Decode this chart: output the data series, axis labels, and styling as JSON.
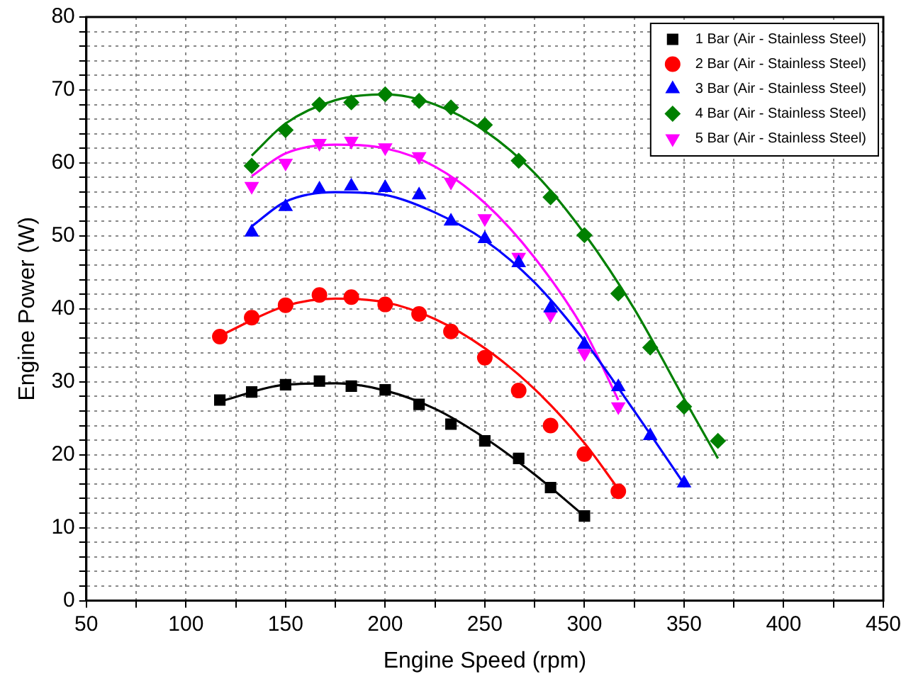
{
  "chart_data": {
    "type": "scatter",
    "xlabel": "Engine Speed (rpm)",
    "ylabel": "Engine Power (W)",
    "xlim": [
      50,
      450
    ],
    "xticks": [
      50,
      {
        "value": 75,
        "label": null
      },
      100,
      {
        "value": 125,
        "label": null
      },
      150,
      {
        "value": 175,
        "label": null
      },
      200,
      {
        "value": 225,
        "label": null
      },
      250,
      {
        "value": 275,
        "label": null
      },
      300,
      {
        "value": 325,
        "label": null
      },
      350,
      {
        "value": 375,
        "label": null
      },
      400,
      {
        "value": 425,
        "label": null
      },
      450
    ],
    "ylim": [
      0,
      80
    ],
    "yticks": [
      0,
      {
        "value": 2,
        "label": null
      },
      {
        "value": 4,
        "label": null
      },
      {
        "value": 6,
        "label": null
      },
      {
        "value": 8,
        "label": null
      },
      10,
      {
        "value": 12,
        "label": null
      },
      {
        "value": 14,
        "label": null
      },
      {
        "value": 16,
        "label": null
      },
      {
        "value": 18,
        "label": null
      },
      20,
      {
        "value": 22,
        "label": null
      },
      {
        "value": 24,
        "label": null
      },
      {
        "value": 26,
        "label": null
      },
      {
        "value": 28,
        "label": null
      },
      30,
      {
        "value": 32,
        "label": null
      },
      {
        "value": 34,
        "label": null
      },
      {
        "value": 36,
        "label": null
      },
      {
        "value": 38,
        "label": null
      },
      40,
      {
        "value": 42,
        "label": null
      },
      {
        "value": 44,
        "label": null
      },
      {
        "value": 46,
        "label": null
      },
      {
        "value": 48,
        "label": null
      },
      50,
      {
        "value": 52,
        "label": null
      },
      {
        "value": 54,
        "label": null
      },
      {
        "value": 56,
        "label": null
      },
      {
        "value": 58,
        "label": null
      },
      60,
      {
        "value": 62,
        "label": null
      },
      {
        "value": 64,
        "label": null
      },
      {
        "value": 66,
        "label": null
      },
      {
        "value": 68,
        "label": null
      },
      70,
      {
        "value": 72,
        "label": null
      },
      {
        "value": 74,
        "label": null
      },
      {
        "value": 76,
        "label": null
      },
      {
        "value": 78,
        "label": null
      },
      80
    ],
    "grid": true,
    "legend": "top right",
    "series": [
      {
        "name": "1 Bar (Air - Stainless Steel)",
        "color": "#000000",
        "marker": "square",
        "x": [
          117,
          133,
          150,
          167,
          183,
          200,
          217,
          233,
          250,
          267,
          283,
          300
        ],
        "values": [
          27.5,
          28.6,
          29.6,
          30.1,
          29.4,
          28.9,
          26.9,
          24.2,
          21.9,
          19.5,
          15.5,
          11.6
        ]
      },
      {
        "name": "2 Bar (Air - Stainless Steel)",
        "color": "#ff0000",
        "marker": "circle",
        "x": [
          117,
          133,
          150,
          167,
          183,
          200,
          217,
          233,
          250,
          267,
          283,
          300,
          317
        ],
        "values": [
          36.2,
          38.8,
          40.5,
          41.9,
          41.6,
          40.6,
          39.3,
          36.9,
          33.3,
          28.8,
          24,
          20.1,
          15
        ]
      },
      {
        "name": "3 Bar (Air - Stainless Steel)",
        "color": "#0000ff",
        "marker": "triangle",
        "x": [
          133,
          150,
          167,
          183,
          200,
          217,
          233,
          250,
          267,
          283,
          300,
          317,
          333,
          350
        ],
        "values": [
          50.5,
          54,
          56.4,
          56.8,
          56.6,
          55.6,
          52,
          49.6,
          46.3,
          40.1,
          35.1,
          29.3,
          22.6,
          16.1
        ]
      },
      {
        "name": "4 Bar (Air - Stainless Steel)",
        "color": "#008000",
        "marker": "diamond",
        "x": [
          133,
          150,
          167,
          183,
          200,
          217,
          233,
          250,
          267,
          283,
          300,
          317,
          333,
          350,
          367
        ],
        "values": [
          59.6,
          64.5,
          68,
          68.3,
          69.4,
          68.5,
          67.6,
          65.2,
          60.3,
          55.3,
          50.1,
          42.1,
          34.7,
          26.6,
          21.9
        ]
      },
      {
        "name": "5 Bar (Air - Stainless Steel)",
        "color": "#ff00ff",
        "marker": "triangle_down",
        "x": [
          133,
          150,
          167,
          183,
          200,
          217,
          233,
          250,
          267,
          283,
          300,
          317
        ],
        "values": [
          56.8,
          60,
          62.7,
          63,
          62.1,
          60.9,
          57.4,
          52.4,
          47.1,
          39.2,
          33.9,
          26.6
        ]
      },
      {
        "type": "line",
        "color": "#000000",
        "marker": "none",
        "x": [
          117,
          150,
          175,
          200,
          225,
          250,
          275,
          300
        ],
        "values": [
          27.3,
          29.6,
          29.8,
          28.8,
          26.3,
          22.3,
          17.3,
          11.6
        ]
      },
      {
        "type": "line",
        "color": "#ff0000",
        "marker": "none",
        "x": [
          117,
          150,
          175,
          200,
          225,
          250,
          275,
          300,
          317
        ],
        "values": [
          36.3,
          40.4,
          41.4,
          40.9,
          38.6,
          34.6,
          29,
          21.6,
          15.3
        ]
      },
      {
        "type": "line",
        "color": "#0000ff",
        "marker": "none",
        "x": [
          133,
          150,
          175,
          200,
          225,
          250,
          275,
          300,
          325,
          350
        ],
        "values": [
          51.3,
          54.7,
          56,
          55.6,
          53.2,
          49.4,
          43.6,
          35.6,
          26,
          16
        ]
      },
      {
        "type": "line",
        "color": "#008000",
        "marker": "none",
        "x": [
          133,
          150,
          175,
          200,
          225,
          250,
          275,
          300,
          325,
          350,
          367
        ],
        "values": [
          61,
          65.4,
          68.6,
          69.4,
          68,
          64.4,
          58.6,
          50.3,
          40,
          27.7,
          19.5
        ]
      },
      {
        "type": "line",
        "color": "#ff00ff",
        "marker": "none",
        "x": [
          133,
          150,
          175,
          200,
          225,
          250,
          275,
          300,
          317
        ],
        "values": [
          58.2,
          61.3,
          62.5,
          62,
          59.5,
          54.5,
          47,
          37,
          27.5
        ]
      }
    ]
  }
}
